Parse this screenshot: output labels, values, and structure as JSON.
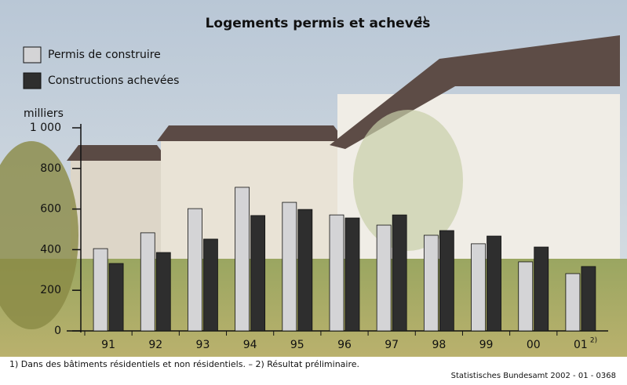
{
  "chart_data": {
    "type": "bar",
    "title": "Logements permis et achevés",
    "title_note": "1)",
    "y_label": "milliers",
    "categories": [
      "91",
      "92",
      "93",
      "94",
      "95",
      "96",
      "97",
      "98",
      "99",
      "00",
      "01"
    ],
    "category_note": "2)",
    "series": [
      {
        "name": "Permis de construire",
        "color": "#d4d4d6",
        "values": [
          405,
          483,
          602,
          707,
          633,
          571,
          521,
          471,
          429,
          340,
          282
        ]
      },
      {
        "name": "Constructions achevées",
        "color": "#2e2e2e",
        "values": [
          332,
          386,
          452,
          568,
          598,
          556,
          571,
          494,
          467,
          413,
          317
        ]
      }
    ],
    "ylim": [
      0,
      1000
    ],
    "yticks": [
      0,
      200,
      400,
      600,
      800,
      {
        "value": 1000,
        "label": "1 000"
      }
    ],
    "footnote": "1) Dans des bâtiments résidentiels et non résidentiels. – 2) Résultat préliminaire.",
    "source": "Statistisches Bundesamt 2002 - 01 - 0368"
  }
}
